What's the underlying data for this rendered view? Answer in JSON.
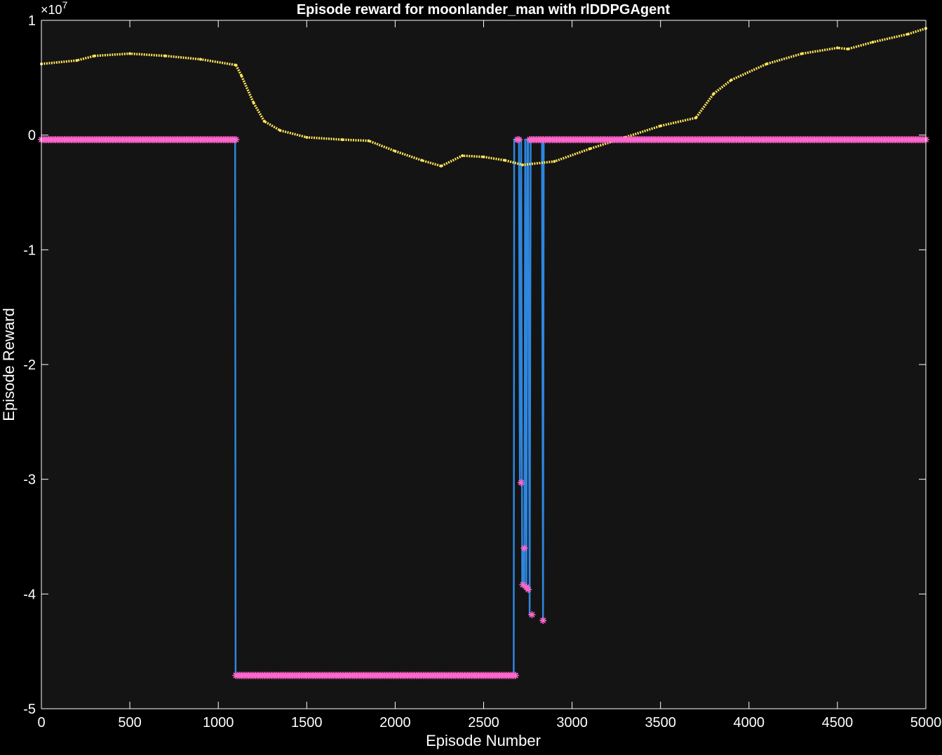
{
  "chart_data": {
    "type": "line",
    "title": "Episode reward for moonlander_man with rlDDPGAgent",
    "xlabel": "Episode Number",
    "ylabel": "Episode Reward",
    "y_exponent_label": "×10",
    "y_exponent_power": "7",
    "xlim": [
      0,
      5000
    ],
    "ylim": [
      -5,
      1
    ],
    "y_units_scale": 10000000,
    "x_ticks": [
      0,
      500,
      1000,
      1500,
      2000,
      2500,
      3000,
      3500,
      4000,
      4500,
      5000
    ],
    "y_ticks": [
      -5,
      -4,
      -3,
      -2,
      -1,
      0,
      1
    ],
    "x_tick_labels": [
      "0",
      "500",
      "1000",
      "1500",
      "2000",
      "2500",
      "3000",
      "3500",
      "4000",
      "4500",
      "5000"
    ],
    "y_tick_labels": [
      "-5",
      "-4",
      "-3",
      "-2",
      "-1",
      "0",
      "1"
    ],
    "grid": false,
    "legend": "none",
    "colors": {
      "background": "#000000",
      "axes_background": "#141414",
      "axes_lines": "#ffffff",
      "episode_reward": "#2e86de",
      "episode_markers": "#ff66cc",
      "average_reward": "#ffe45a"
    },
    "series": [
      {
        "role": "average-reward",
        "style": "dotted-line",
        "x": [
          0,
          200,
          300,
          500,
          700,
          900,
          1100,
          1130,
          1200,
          1260,
          1350,
          1500,
          1700,
          1850,
          2000,
          2150,
          2260,
          2380,
          2500,
          2620,
          2720,
          2900,
          3100,
          3300,
          3500,
          3700,
          3800,
          3900,
          4100,
          4300,
          4500,
          4560,
          4700,
          4900,
          5000
        ],
        "y": [
          0.62,
          0.65,
          0.69,
          0.71,
          0.69,
          0.66,
          0.61,
          0.52,
          0.28,
          0.12,
          0.04,
          -0.02,
          -0.04,
          -0.05,
          -0.14,
          -0.22,
          -0.27,
          -0.18,
          -0.19,
          -0.22,
          -0.26,
          -0.23,
          -0.12,
          -0.02,
          0.08,
          0.15,
          0.36,
          0.48,
          0.62,
          0.71,
          0.76,
          0.75,
          0.81,
          0.88,
          0.93
        ]
      },
      {
        "role": "episode-reward",
        "style": "line",
        "x": [
          0,
          1095,
          1098,
          2670,
          2673,
          2690,
          2700,
          2705,
          2712,
          2718,
          2722,
          2730,
          2735,
          2742,
          2747,
          2752,
          2760,
          2766,
          2773,
          2780,
          2787,
          2800,
          2820,
          2830,
          2836,
          2840,
          2846,
          2860,
          2900,
          3000,
          3500,
          4000,
          4500,
          5000
        ],
        "y": [
          -0.04,
          -0.04,
          -4.71,
          -4.71,
          -0.04,
          -0.04,
          -0.04,
          -3.03,
          -0.04,
          -3.92,
          -3.6,
          -3.94,
          -0.04,
          -3.96,
          -0.04,
          -0.04,
          -4.18,
          -0.04,
          -0.04,
          -0.04,
          -0.04,
          -0.04,
          -0.04,
          -0.04,
          -4.23,
          -0.04,
          -0.04,
          -0.04,
          -0.04,
          -0.04,
          -0.04,
          -0.04,
          -0.04,
          -0.04
        ]
      },
      {
        "role": "episode-markers",
        "style": "markers",
        "note_sampling_step": 10,
        "segments": [
          {
            "x_from": 0,
            "x_to": 1100,
            "y": -0.04
          },
          {
            "x_from": 1100,
            "x_to": 2680,
            "y": -4.71
          },
          {
            "x_from": 2690,
            "x_to": 2705,
            "y": -0.04
          },
          {
            "x_from": 2760,
            "x_to": 5000,
            "y": -0.04
          }
        ],
        "points": [
          {
            "x": 2712,
            "y": -3.03
          },
          {
            "x": 2722,
            "y": -3.92
          },
          {
            "x": 2730,
            "y": -3.6
          },
          {
            "x": 2742,
            "y": -3.94
          },
          {
            "x": 2752,
            "y": -3.96
          },
          {
            "x": 2773,
            "y": -4.18
          },
          {
            "x": 2836,
            "y": -4.23
          }
        ]
      }
    ]
  }
}
